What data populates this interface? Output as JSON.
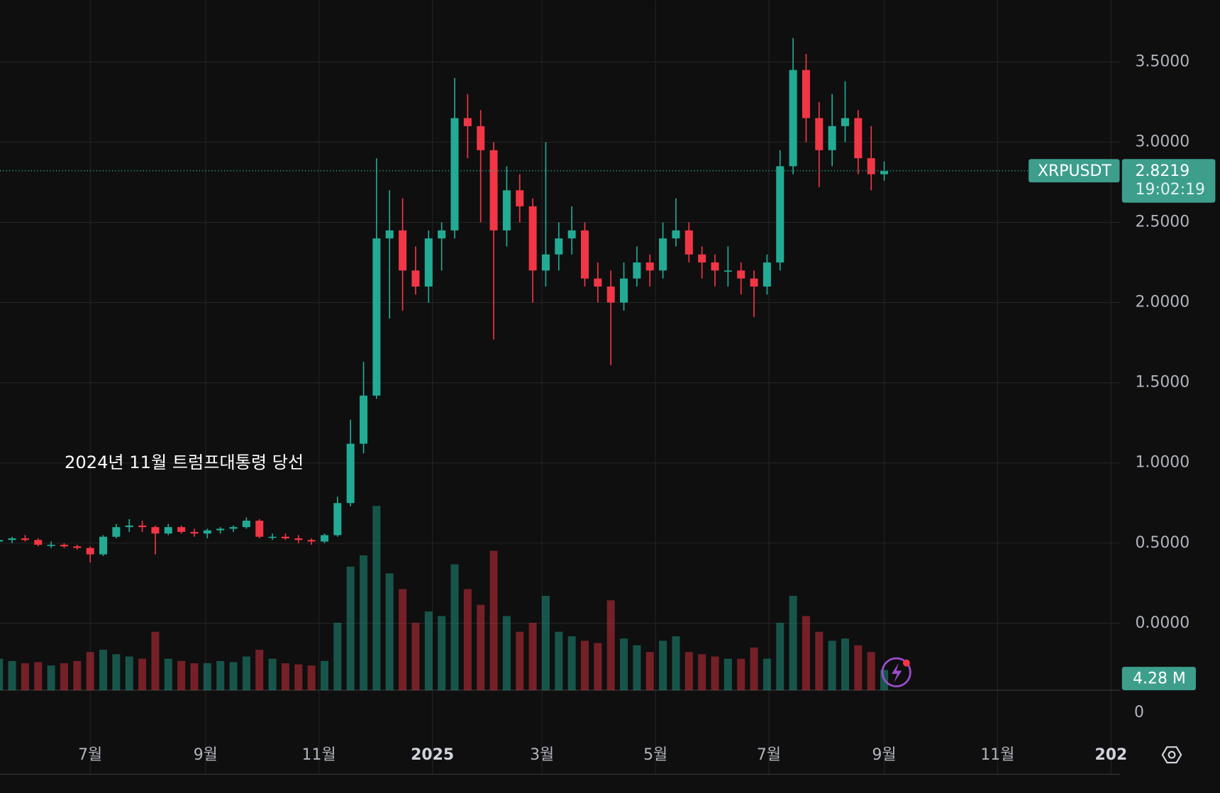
{
  "chart_data": {
    "type": "candlestick",
    "symbol": "XRPUSDT",
    "annotation": "2024년 11월 트럼프대통령 당선",
    "up_color": "#22ab94",
    "down_color": "#f23645",
    "open": [
      0.51,
      0.52,
      0.53,
      0.52,
      0.49,
      0.49,
      0.48,
      0.47,
      0.43,
      0.54,
      0.6,
      0.61,
      0.6,
      0.56,
      0.6,
      0.57,
      0.56,
      0.58,
      0.59,
      0.6,
      0.64,
      0.54,
      0.54,
      0.53,
      0.52,
      0.51,
      0.55,
      0.75,
      1.12,
      1.42,
      2.4,
      2.45,
      2.2,
      2.1,
      2.4,
      2.45,
      3.15,
      3.1,
      2.95,
      2.45,
      2.7,
      2.6,
      2.2,
      2.3,
      2.4,
      2.45,
      2.15,
      2.1,
      2.0,
      2.15,
      2.25,
      2.2,
      2.4,
      2.45,
      2.3,
      2.25,
      2.2,
      2.2,
      2.15,
      2.1,
      2.25,
      2.85,
      3.45,
      3.15,
      2.95,
      3.1,
      3.15,
      2.9,
      2.8
    ],
    "high": [
      0.53,
      0.54,
      0.55,
      0.53,
      0.51,
      0.5,
      0.49,
      0.48,
      0.55,
      0.62,
      0.65,
      0.64,
      0.61,
      0.62,
      0.61,
      0.59,
      0.59,
      0.6,
      0.61,
      0.66,
      0.65,
      0.56,
      0.56,
      0.55,
      0.53,
      0.56,
      0.79,
      1.27,
      1.63,
      2.9,
      2.7,
      2.65,
      2.35,
      2.45,
      2.5,
      3.4,
      3.3,
      3.2,
      3.0,
      2.85,
      2.8,
      2.65,
      3.0,
      2.5,
      2.6,
      2.5,
      2.25,
      2.2,
      2.25,
      2.35,
      2.3,
      2.5,
      2.65,
      2.5,
      2.35,
      2.3,
      2.35,
      2.25,
      2.2,
      2.3,
      2.95,
      3.65,
      3.55,
      3.25,
      3.3,
      3.38,
      3.2,
      3.1,
      2.88
    ],
    "low": [
      0.49,
      0.5,
      0.51,
      0.48,
      0.47,
      0.47,
      0.46,
      0.38,
      0.42,
      0.53,
      0.57,
      0.57,
      0.43,
      0.55,
      0.56,
      0.54,
      0.53,
      0.56,
      0.57,
      0.59,
      0.53,
      0.52,
      0.52,
      0.5,
      0.49,
      0.5,
      0.54,
      0.73,
      1.06,
      1.4,
      1.9,
      1.95,
      2.05,
      2.0,
      2.2,
      2.4,
      2.9,
      2.5,
      1.77,
      2.35,
      2.5,
      2.0,
      2.1,
      2.2,
      2.3,
      2.1,
      2.0,
      1.61,
      1.95,
      2.1,
      2.1,
      2.15,
      2.35,
      2.25,
      2.15,
      2.1,
      2.1,
      2.05,
      1.91,
      2.05,
      2.2,
      2.8,
      3.0,
      2.72,
      2.85,
      3.0,
      2.8,
      2.7,
      2.76
    ],
    "close": [
      0.52,
      0.53,
      0.52,
      0.49,
      0.49,
      0.48,
      0.47,
      0.43,
      0.54,
      0.6,
      0.61,
      0.6,
      0.56,
      0.6,
      0.57,
      0.56,
      0.58,
      0.59,
      0.6,
      0.64,
      0.54,
      0.54,
      0.53,
      0.52,
      0.51,
      0.55,
      0.75,
      1.12,
      1.42,
      2.4,
      2.45,
      2.2,
      2.1,
      2.4,
      2.45,
      3.15,
      3.1,
      2.95,
      2.45,
      2.7,
      2.6,
      2.2,
      2.3,
      2.4,
      2.45,
      2.15,
      2.1,
      2.0,
      2.15,
      2.25,
      2.2,
      2.4,
      2.45,
      2.3,
      2.25,
      2.2,
      2.2,
      2.15,
      2.1,
      2.25,
      2.85,
      3.45,
      3.15,
      2.95,
      3.1,
      3.15,
      2.9,
      2.8,
      2.82
    ],
    "volume": [
      140,
      130,
      120,
      125,
      110,
      120,
      130,
      170,
      180,
      160,
      150,
      140,
      260,
      140,
      130,
      120,
      120,
      130,
      125,
      150,
      180,
      140,
      120,
      115,
      110,
      130,
      300,
      550,
      600,
      820,
      520,
      450,
      300,
      350,
      330,
      560,
      450,
      380,
      620,
      330,
      260,
      300,
      420,
      260,
      240,
      220,
      210,
      400,
      230,
      200,
      170,
      220,
      240,
      170,
      160,
      150,
      140,
      140,
      190,
      140,
      300,
      420,
      330,
      260,
      220,
      230,
      200,
      170,
      90
    ],
    "xlim": [
      0.07,
      85.55
    ],
    "xticks": [
      {
        "value": 7,
        "label": "7월"
      },
      {
        "value": 15.86,
        "label": "9월"
      },
      {
        "value": 24.57,
        "label": "11월"
      },
      {
        "value": 33.29,
        "label": "2025"
      },
      {
        "value": 41.71,
        "label": "3월"
      },
      {
        "value": 50.43,
        "label": "5월"
      },
      {
        "value": 59.14,
        "label": "7월"
      },
      {
        "value": 68,
        "label": "9월"
      },
      {
        "value": 76.71,
        "label": "11월"
      },
      {
        "value": 85.43,
        "label": "202"
      }
    ],
    "ylim": [
      -0.674,
      3.886
    ],
    "yticks": [
      {
        "value": 0,
        "label": "0.0000"
      },
      {
        "value": 0.5,
        "label": "0.5000"
      },
      {
        "value": 1,
        "label": "1.0000"
      },
      {
        "value": 1.5,
        "label": "1.5000"
      },
      {
        "value": 2,
        "label": "2.0000"
      },
      {
        "value": 2.5,
        "label": "2.5000"
      },
      {
        "value": 3,
        "label": "3.0000"
      },
      {
        "value": 3.5,
        "label": "3.5000"
      }
    ],
    "vlim": [
      0,
      900
    ],
    "vticks": [
      0
    ],
    "last_price": 2.8219,
    "countdown": "19:02:19",
    "current_volume": "4.28 M",
    "grid": true
  }
}
